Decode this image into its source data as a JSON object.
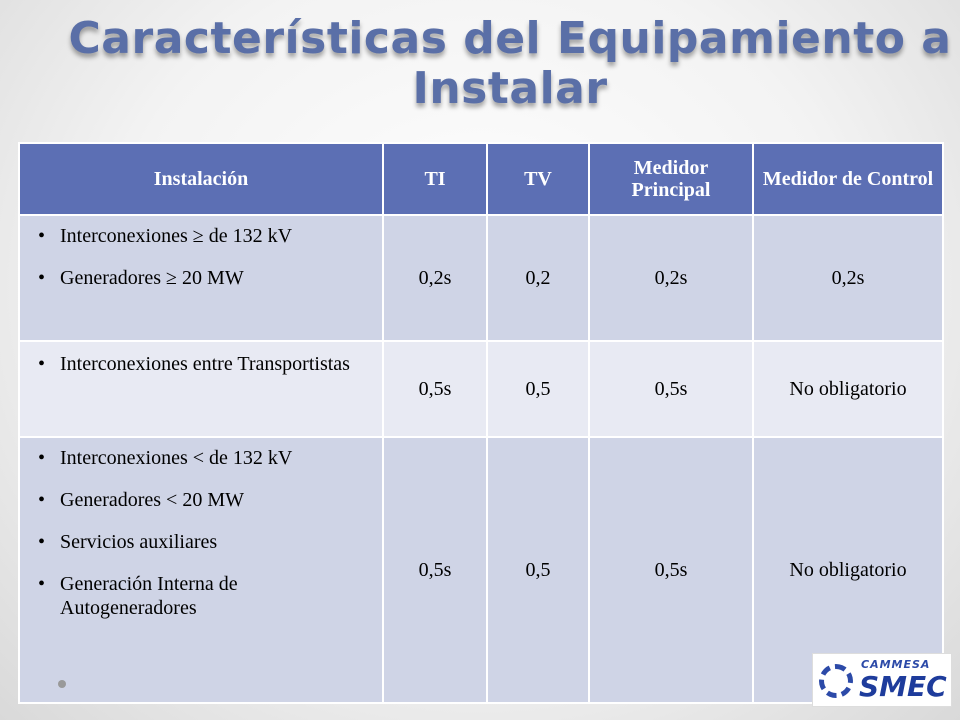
{
  "title": "Características del Equipamiento a Instalar",
  "headers": [
    "Instalación",
    "TI",
    "TV",
    "Medidor Principal",
    "Medidor de Control"
  ],
  "rows": [
    {
      "items": [
        "Interconexiones ≥ de 132 kV",
        "Generadores ≥ 20 MW"
      ],
      "ti": "0,2s",
      "tv": "0,2",
      "principal": "0,2s",
      "control": "0,2s"
    },
    {
      "items": [
        "Interconexiones entre Transportistas"
      ],
      "ti": "0,5s",
      "tv": "0,5",
      "principal": "0,5s",
      "control": "No obligatorio"
    },
    {
      "items": [
        "Interconexiones < de 132 kV",
        "Generadores < 20 MW",
        "Servicios auxiliares",
        "Generación Interna de Autogeneradores"
      ],
      "ti": "0,5s",
      "tv": "0,5",
      "principal": "0,5s",
      "control": "No obligatorio"
    }
  ],
  "logo": {
    "small": "CAMMESA",
    "big": "SMEC"
  }
}
